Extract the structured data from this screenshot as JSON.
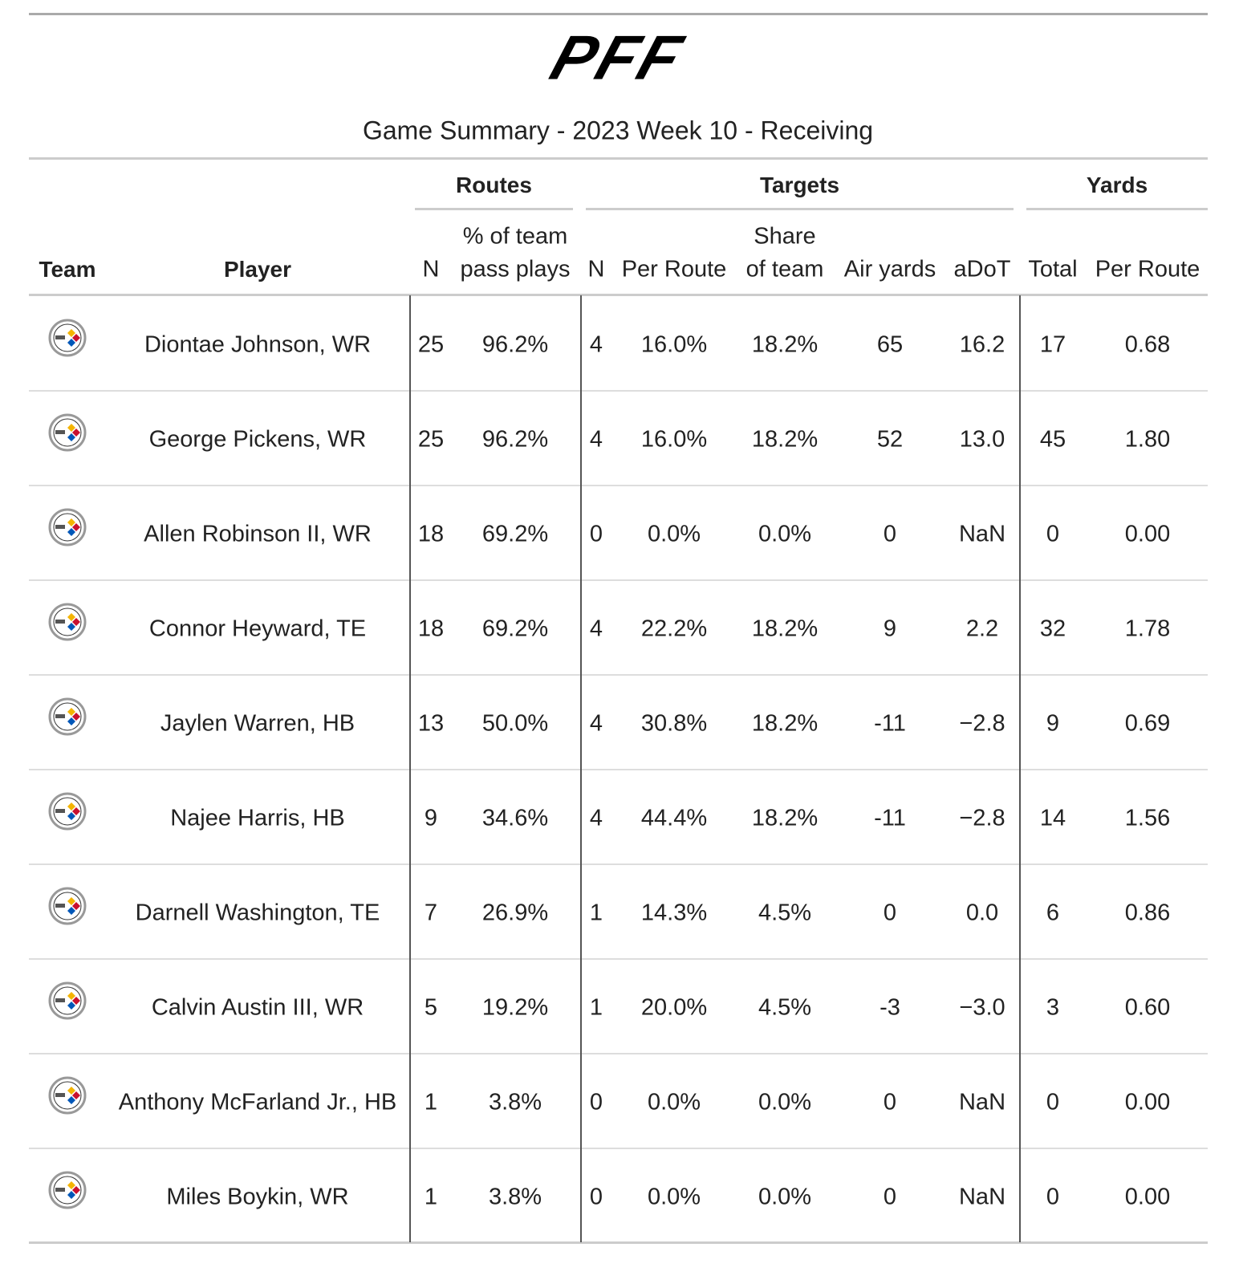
{
  "header": {
    "logo": "PFF",
    "title": "Game Summary - 2023 Week 10 - Receiving"
  },
  "table": {
    "groups": [
      "Routes",
      "Targets",
      "Yards"
    ],
    "columns": [
      [
        "Team"
      ],
      [
        "Player"
      ],
      [
        "N"
      ],
      [
        "% of team",
        "pass plays"
      ],
      [
        "N"
      ],
      [
        "Per Route"
      ],
      [
        "Share",
        "of team"
      ],
      [
        "Air yards"
      ],
      [
        "aDoT"
      ],
      [
        "Total"
      ],
      [
        "Per Route"
      ]
    ],
    "rows": [
      [
        "Diontae Johnson, WR",
        "25",
        "96.2%",
        "4",
        "16.0%",
        "18.2%",
        "65",
        "16.2",
        "17",
        "0.68"
      ],
      [
        "George Pickens, WR",
        "25",
        "96.2%",
        "4",
        "16.0%",
        "18.2%",
        "52",
        "13.0",
        "45",
        "1.80"
      ],
      [
        "Allen Robinson II, WR",
        "18",
        "69.2%",
        "0",
        "0.0%",
        "0.0%",
        "0",
        "NaN",
        "0",
        "0.00"
      ],
      [
        "Connor Heyward, TE",
        "18",
        "69.2%",
        "4",
        "22.2%",
        "18.2%",
        "9",
        "2.2",
        "32",
        "1.78"
      ],
      [
        "Jaylen Warren, HB",
        "13",
        "50.0%",
        "4",
        "30.8%",
        "18.2%",
        "-11",
        "−2.8",
        "9",
        "0.69"
      ],
      [
        "Najee Harris, HB",
        "9",
        "34.6%",
        "4",
        "44.4%",
        "18.2%",
        "-11",
        "−2.8",
        "14",
        "1.56"
      ],
      [
        "Darnell Washington, TE",
        "7",
        "26.9%",
        "1",
        "14.3%",
        "4.5%",
        "0",
        "0.0",
        "6",
        "0.86"
      ],
      [
        "Calvin Austin III, WR",
        "5",
        "19.2%",
        "1",
        "20.0%",
        "4.5%",
        "-3",
        "−3.0",
        "3",
        "0.60"
      ],
      [
        "Anthony McFarland Jr., HB",
        "1",
        "3.8%",
        "0",
        "0.0%",
        "0.0%",
        "0",
        "NaN",
        "0",
        "0.00"
      ],
      [
        "Miles Boykin, WR",
        "1",
        "3.8%",
        "0",
        "0.0%",
        "0.0%",
        "0",
        "NaN",
        "0",
        "0.00"
      ]
    ]
  }
}
